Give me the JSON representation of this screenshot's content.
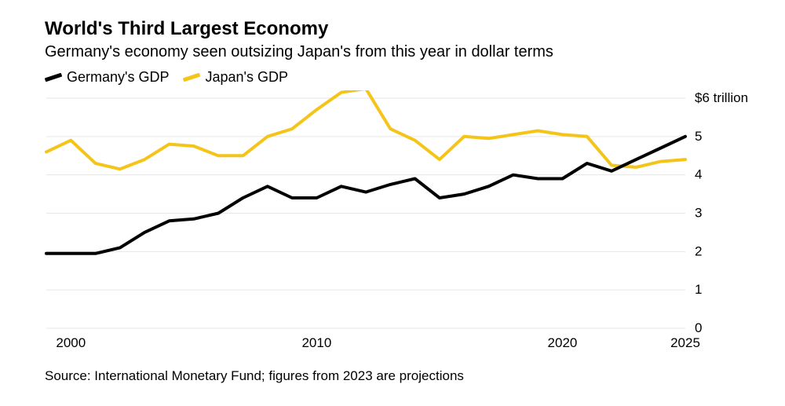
{
  "title": "World's Third Largest Economy",
  "subtitle": "Germany's economy seen outsizing Japan's from this year in dollar terms",
  "source": "Source: International Monetary Fund; figures from 2023 are projections",
  "legend": {
    "germany": "Germany's GDP",
    "japan": "Japan's GDP"
  },
  "chart": {
    "type": "line",
    "background_color": "#ffffff",
    "grid_color": "#e6e6e6",
    "axis_text_color": "#000000",
    "axis_fontsize": 17,
    "yaxis_label_first": "$6 trillion",
    "x": {
      "min": 1999,
      "max": 2025,
      "ticks": [
        2000,
        2010,
        2020,
        2025
      ]
    },
    "y": {
      "min": 0,
      "max": 6,
      "ticks": [
        0,
        1,
        2,
        3,
        4,
        5,
        6
      ]
    },
    "series": [
      {
        "name": "Germany's GDP",
        "color": "#000000",
        "line_width": 4,
        "years": [
          1999,
          2000,
          2001,
          2002,
          2003,
          2004,
          2005,
          2006,
          2007,
          2008,
          2009,
          2010,
          2011,
          2012,
          2013,
          2014,
          2015,
          2016,
          2017,
          2018,
          2019,
          2020,
          2021,
          2022,
          2023,
          2024,
          2025
        ],
        "values": [
          1.95,
          1.95,
          1.95,
          2.1,
          2.5,
          2.8,
          2.85,
          3.0,
          3.4,
          3.7,
          3.4,
          3.4,
          3.7,
          3.55,
          3.75,
          3.9,
          3.4,
          3.5,
          3.7,
          4.0,
          3.9,
          3.9,
          4.3,
          4.1,
          4.4,
          4.7,
          5.0
        ]
      },
      {
        "name": "Japan's GDP",
        "color": "#f4c518",
        "line_width": 4,
        "years": [
          1999,
          2000,
          2001,
          2002,
          2003,
          2004,
          2005,
          2006,
          2007,
          2008,
          2009,
          2010,
          2011,
          2012,
          2013,
          2014,
          2015,
          2016,
          2017,
          2018,
          2019,
          2020,
          2021,
          2022,
          2023,
          2024,
          2025
        ],
        "values": [
          4.6,
          4.9,
          4.3,
          4.15,
          4.4,
          4.8,
          4.75,
          4.5,
          4.5,
          5.0,
          5.2,
          5.7,
          6.15,
          6.25,
          5.2,
          4.9,
          4.4,
          5.0,
          4.95,
          5.05,
          5.15,
          5.05,
          5.0,
          4.25,
          4.2,
          4.35,
          4.4
        ]
      }
    ]
  }
}
